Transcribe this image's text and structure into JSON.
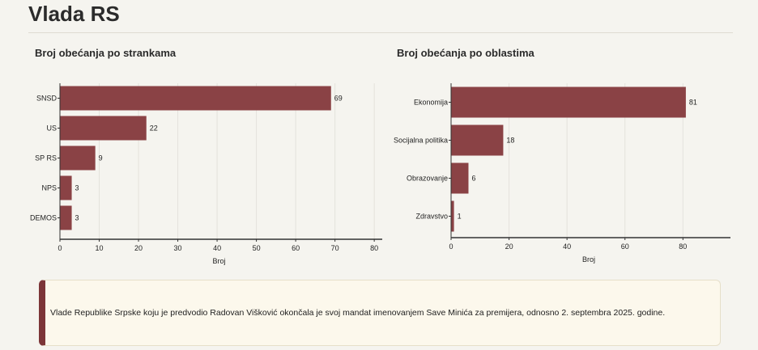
{
  "page": {
    "title": "Vlada RS"
  },
  "colors": {
    "bar": "#8a4245",
    "grid": "#e4e2dc",
    "axis": "#333333"
  },
  "chart_data": [
    {
      "type": "bar",
      "orientation": "horizontal",
      "title": "Broj obećanja po strankama",
      "xlabel": "Broj",
      "ylabel": "",
      "categories": [
        "SNSD",
        "US",
        "SP RS",
        "NPS",
        "DEMOS"
      ],
      "values": [
        69,
        22,
        9,
        3,
        3
      ],
      "xlim": [
        0,
        81
      ],
      "xticks": [
        0,
        10,
        20,
        30,
        40,
        50,
        60,
        70,
        80
      ],
      "grid": true
    },
    {
      "type": "bar",
      "orientation": "horizontal",
      "title": "Broj obećanja po oblastima",
      "xlabel": "Broj",
      "ylabel": "",
      "categories": [
        "Ekonomija",
        "Socijalna politika",
        "Obrazovanje",
        "Zdravstvo"
      ],
      "values": [
        81,
        18,
        6,
        1
      ],
      "xlim": [
        0,
        95
      ],
      "xticks": [
        0,
        20,
        40,
        60,
        80
      ],
      "grid": true
    }
  ],
  "note": {
    "text": "Vlade Republike Srpske koju je predvodio Radovan Višković okončala je svoj mandat imenovanjem Save Minića za premijera, odnosno 2. septembra 2025. godine."
  }
}
